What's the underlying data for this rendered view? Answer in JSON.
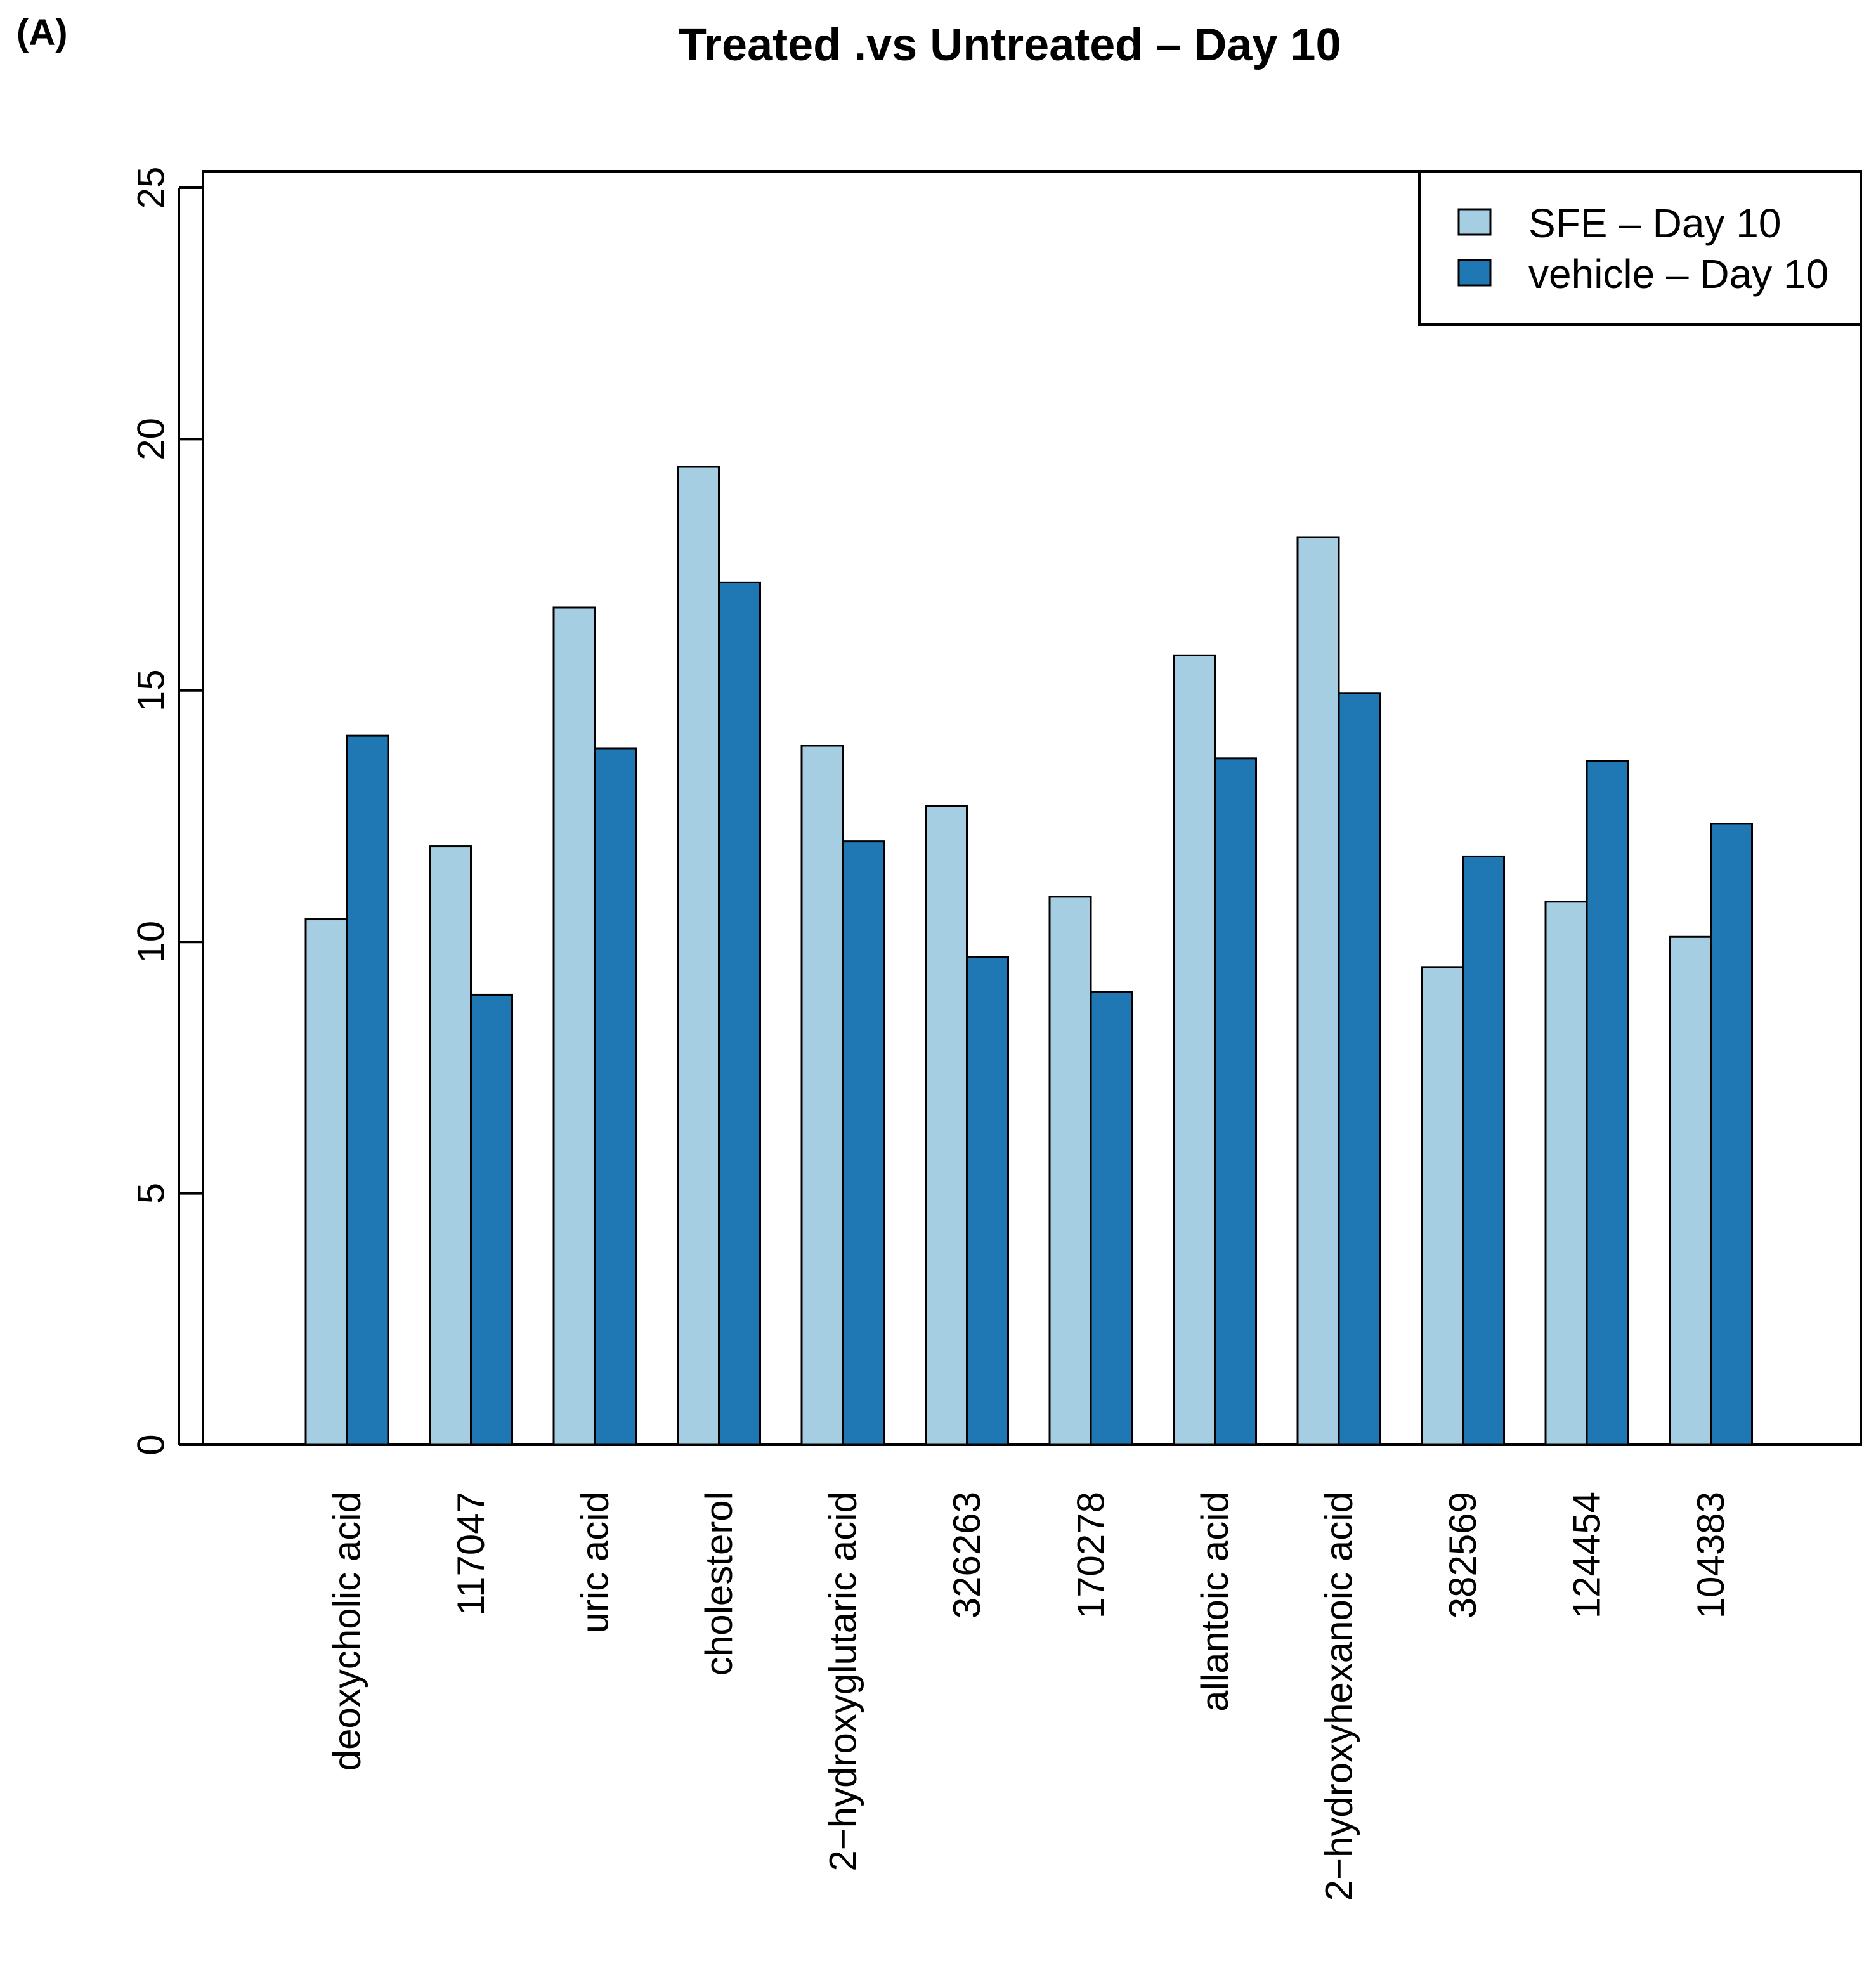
{
  "panel_label": "(A)",
  "chart_data": {
    "type": "bar",
    "title": "Treated .vs Untreated – Day 10",
    "xlabel": "",
    "ylabel": "",
    "ylim": [
      0,
      25
    ],
    "yticks": [
      0,
      5,
      10,
      15,
      20,
      25
    ],
    "grid": false,
    "legend_position": "top-right",
    "categories": [
      "deoxycholic acid",
      "117047",
      "uric acid",
      "cholesterol",
      "2−hydroxyglutaric acid",
      "326263",
      "170278",
      "allantoic acid",
      "2−hydroxyhexanoic acid",
      "382569",
      "124454",
      "104383"
    ],
    "series": [
      {
        "name": "SFE – Day 10",
        "color": "#a6cee3",
        "values": [
          10.45,
          11.9,
          16.65,
          19.45,
          13.9,
          12.7,
          10.9,
          15.7,
          18.05,
          9.5,
          10.8,
          10.1
        ]
      },
      {
        "name": "vehicle – Day 10",
        "color": "#1f78b4",
        "values": [
          14.1,
          8.95,
          13.85,
          17.15,
          12.0,
          9.7,
          9.0,
          13.65,
          14.95,
          11.7,
          13.6,
          12.35
        ]
      }
    ]
  }
}
